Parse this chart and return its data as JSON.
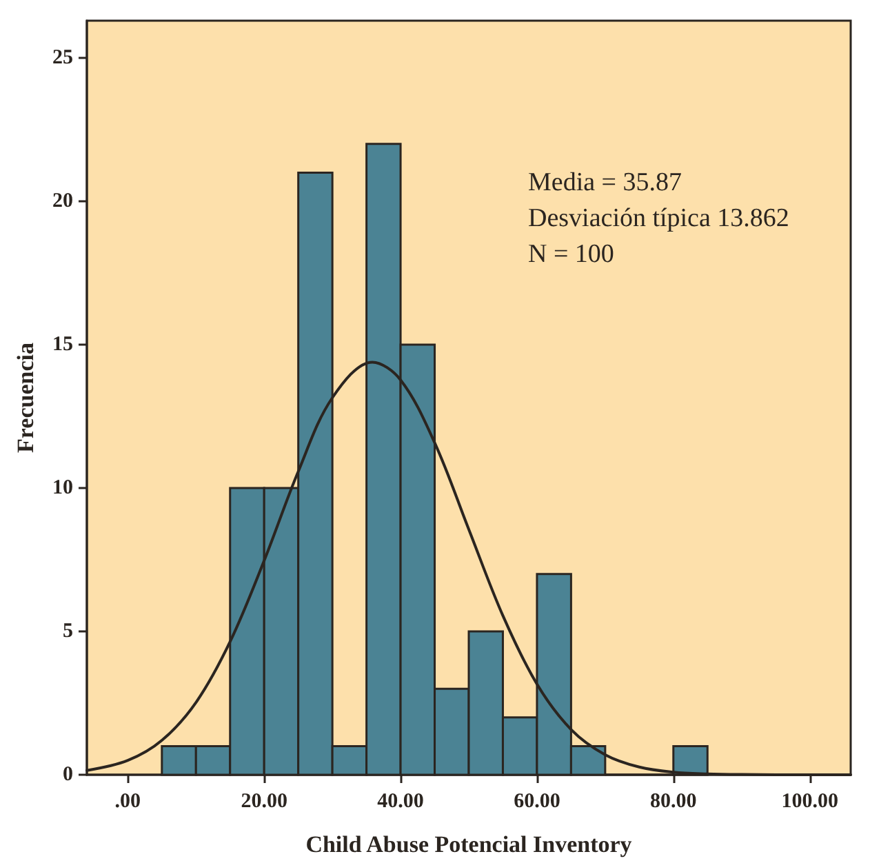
{
  "chart_data": {
    "type": "histogram",
    "xlabel": "Child Abuse Potencial Inventory",
    "ylabel": "Frecuencia",
    "bins": [
      5,
      10,
      15,
      20,
      25,
      30,
      35,
      40,
      45,
      50,
      55,
      60,
      65,
      70,
      75,
      80,
      85
    ],
    "values": [
      1,
      1,
      10,
      10,
      21,
      1,
      22,
      15,
      3,
      5,
      2,
      7,
      1,
      0,
      0,
      1
    ],
    "color": "#4b8394",
    "series": [
      {
        "type": "line",
        "color": "#2b2520",
        "x": [
          -6,
          0,
          5,
          10,
          15,
          20,
          25,
          30,
          35.87,
          40,
          45,
          50,
          55,
          60,
          65,
          70,
          75,
          80,
          85,
          90,
          100,
          106
        ],
        "values": [
          0.15,
          0.5,
          1.2,
          2.52,
          4.64,
          7.47,
          10.58,
          13.15,
          14.39,
          13.77,
          11.58,
          8.56,
          5.55,
          3.16,
          1.58,
          0.7,
          0.27,
          0.09,
          0.03,
          0.01,
          0,
          0
        ]
      }
    ],
    "xlim": [
      -6,
      106
    ],
    "ylim": [
      0,
      26.3
    ],
    "xticks": [
      {
        "value": 0,
        "label": ".00"
      },
      {
        "value": 20,
        "label": "20.00"
      },
      {
        "value": 40,
        "label": "40.00"
      },
      {
        "value": 60,
        "label": "60.00"
      },
      {
        "value": 80,
        "label": "80.00"
      },
      {
        "value": 100,
        "label": "100.00"
      }
    ],
    "yticks": [
      0,
      5,
      10,
      15,
      20,
      25
    ],
    "annotations": [
      "Media = 35.87",
      "Desviación típica 13.862",
      "N = 100"
    ],
    "grid": false
  }
}
